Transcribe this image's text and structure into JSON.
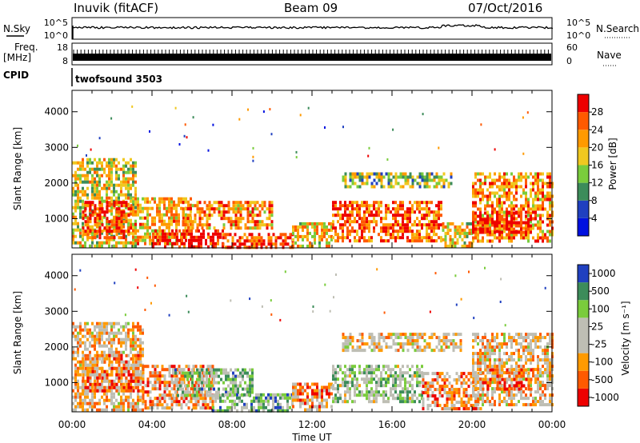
{
  "header": {
    "station": "Inuvik (fitACF)",
    "beam": "Beam 09",
    "date": "07/Oct/2016"
  },
  "status_panels": {
    "nsky_label": "N.Sky",
    "nsky_ticks": [
      "10^5",
      "10^0"
    ],
    "nsearch_label": "N.Search",
    "nsearch_ticks": [
      "10^5",
      "10^0"
    ],
    "freq_label_line1": "Freq.",
    "freq_label_line2": "[MHz]",
    "freq_ticks": [
      "18",
      "8"
    ],
    "nave_label": "Nave",
    "nave_ticks": [
      "60",
      "0"
    ],
    "cpid_label": "CPID",
    "cpid_value": "twofsound 3503"
  },
  "colors": {
    "power_scale": [
      "#0010e0",
      "#2040c0",
      "#3c8c5a",
      "#7acc3c",
      "#f0c820",
      "#ff9a00",
      "#ff5a00",
      "#ee0000"
    ],
    "velocity_scale": [
      "#ee0000",
      "#ff5a00",
      "#ff9a00",
      "#bebeb4",
      "#bebeb4",
      "#7acc3c",
      "#3c8c5a",
      "#2040c0"
    ]
  },
  "chart_data": [
    {
      "type": "heatmap",
      "name": "power",
      "ylabel": "Slant Range [km]",
      "yticks": [
        1000,
        2000,
        3000,
        4000
      ],
      "ylim": [
        180,
        4600
      ],
      "xlim": [
        0,
        24
      ],
      "colorbar_label": "Power [dB]",
      "colorbar_ticks": [
        "4",
        "8",
        "12",
        "16",
        "20",
        "24",
        "28"
      ],
      "regions": [
        {
          "x0": 0,
          "x1": 3.2,
          "y0": 200,
          "y1": 2700,
          "level": 0.55
        },
        {
          "x0": 0.5,
          "x1": 3.0,
          "y0": 500,
          "y1": 1500,
          "level": 0.9
        },
        {
          "x0": 3.0,
          "x1": 6.0,
          "y0": 300,
          "y1": 1600,
          "level": 0.65
        },
        {
          "x0": 4.0,
          "x1": 7.5,
          "y0": 200,
          "y1": 700,
          "level": 0.95
        },
        {
          "x0": 5.5,
          "x1": 10.0,
          "y0": 700,
          "y1": 1500,
          "level": 0.7
        },
        {
          "x0": 7.5,
          "x1": 11.0,
          "y0": 200,
          "y1": 600,
          "level": 0.9
        },
        {
          "x0": 11.0,
          "x1": 13.0,
          "y0": 200,
          "y1": 900,
          "level": 0.6
        },
        {
          "x0": 13.0,
          "x1": 18.5,
          "y0": 400,
          "y1": 1500,
          "level": 0.8
        },
        {
          "x0": 13.5,
          "x1": 19.0,
          "y0": 1900,
          "y1": 2300,
          "level": 0.45
        },
        {
          "x0": 18.5,
          "x1": 20.0,
          "y0": 200,
          "y1": 900,
          "level": 0.6
        },
        {
          "x0": 20.0,
          "x1": 24.0,
          "y0": 400,
          "y1": 2300,
          "level": 0.7
        },
        {
          "x0": 20.0,
          "x1": 23.0,
          "y0": 600,
          "y1": 1200,
          "level": 0.95
        }
      ]
    },
    {
      "type": "heatmap",
      "name": "velocity",
      "ylabel": "Slant Range [km]",
      "yticks": [
        1000,
        2000,
        3000,
        4000
      ],
      "ylim": [
        180,
        4600
      ],
      "xlim": [
        0,
        24
      ],
      "xticks": [
        "00:00",
        "04:00",
        "08:00",
        "12:00",
        "16:00",
        "20:00",
        "00:00"
      ],
      "xlabel": "Time UT",
      "colorbar_label": "Velocity [m s⁻¹]",
      "colorbar_ticks": [
        "-1000",
        "-500",
        "-100",
        "-25",
        "25",
        "100",
        "500",
        "1000"
      ],
      "regions": [
        {
          "x0": 0,
          "x1": 3.5,
          "y0": 200,
          "y1": 2700,
          "level": 0.4
        },
        {
          "x0": 0.5,
          "x1": 3.5,
          "y0": 800,
          "y1": 1800,
          "level": 0.25
        },
        {
          "x0": 3.5,
          "x1": 7.0,
          "y0": 300,
          "y1": 1500,
          "level": 0.3
        },
        {
          "x0": 5.0,
          "x1": 9.0,
          "y0": 600,
          "y1": 1400,
          "level": 0.65
        },
        {
          "x0": 7.0,
          "x1": 11.0,
          "y0": 200,
          "y1": 700,
          "level": 0.7
        },
        {
          "x0": 11.0,
          "x1": 13.0,
          "y0": 200,
          "y1": 1000,
          "level": 0.3
        },
        {
          "x0": 13.0,
          "x1": 17.5,
          "y0": 500,
          "y1": 1500,
          "level": 0.6
        },
        {
          "x0": 13.5,
          "x1": 19.5,
          "y0": 1900,
          "y1": 2400,
          "level": 0.45
        },
        {
          "x0": 17.5,
          "x1": 20.5,
          "y0": 300,
          "y1": 1300,
          "level": 0.3
        },
        {
          "x0": 20.0,
          "x1": 24.0,
          "y0": 400,
          "y1": 2400,
          "level": 0.4
        },
        {
          "x0": 20.5,
          "x1": 23.0,
          "y0": 800,
          "y1": 1400,
          "level": 0.2
        }
      ]
    }
  ]
}
